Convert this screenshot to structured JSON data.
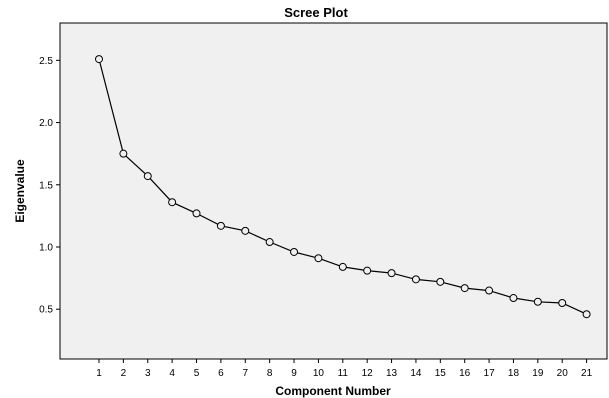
{
  "chart_data": {
    "type": "line",
    "title": "Scree Plot",
    "xlabel": "Component Number",
    "ylabel": "Eigenvalue",
    "x": [
      1,
      2,
      3,
      4,
      5,
      6,
      7,
      8,
      9,
      10,
      11,
      12,
      13,
      14,
      15,
      16,
      17,
      18,
      19,
      20,
      21
    ],
    "series": [
      {
        "values": [
          2.51,
          1.75,
          1.57,
          1.36,
          1.27,
          1.17,
          1.13,
          1.04,
          0.96,
          0.91,
          0.84,
          0.81,
          0.79,
          0.74,
          0.72,
          0.67,
          0.65,
          0.59,
          0.56,
          0.55,
          0.46
        ]
      }
    ],
    "ylim": [
      0.1,
      2.8
    ],
    "yticks": [
      0.5,
      1.0,
      1.5,
      2.0,
      2.5
    ],
    "yticklabels": [
      "0.5",
      "1.0",
      "1.5",
      "2.0",
      "2.5"
    ],
    "xticks": [
      1,
      2,
      3,
      4,
      5,
      6,
      7,
      8,
      9,
      10,
      11,
      12,
      13,
      14,
      15,
      16,
      17,
      18,
      19,
      20,
      21
    ],
    "grid": false,
    "marker": "circle",
    "colors": {
      "plot_background": "#f0f0f0",
      "line": "#000000",
      "marker_fill": "#f0f0f0"
    }
  }
}
